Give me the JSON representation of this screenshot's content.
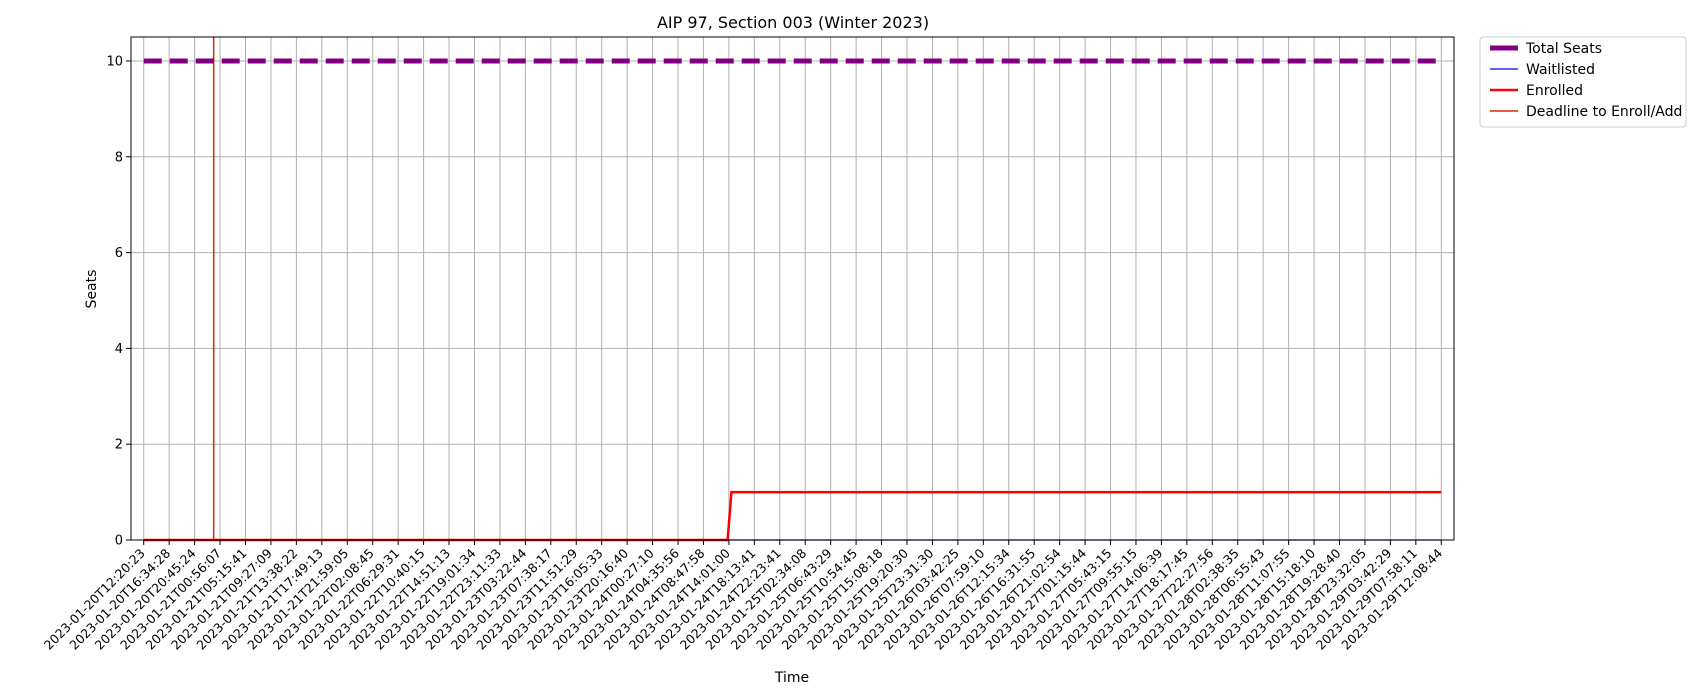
{
  "chart_data": {
    "type": "line",
    "title": "AIP 97, Section 003 (Winter 2023)",
    "xlabel": "Time",
    "ylabel": "Seats",
    "ylim": [
      0,
      10.5
    ],
    "yticks": [
      0,
      2,
      4,
      6,
      8,
      10
    ],
    "grid": true,
    "legend_position": "outside-top-right",
    "x_categories": [
      "2023-01-20T12:20:23",
      "2023-01-20T16:34:28",
      "2023-01-20T20:45:24",
      "2023-01-21T00:56:07",
      "2023-01-21T05:15:41",
      "2023-01-21T09:27:09",
      "2023-01-21T13:38:22",
      "2023-01-21T17:49:13",
      "2023-01-21T21:59:05",
      "2023-01-22T02:08:45",
      "2023-01-22T06:29:31",
      "2023-01-22T10:40:15",
      "2023-01-22T14:51:13",
      "2023-01-22T19:01:34",
      "2023-01-22T23:11:33",
      "2023-01-23T03:22:44",
      "2023-01-23T07:38:17",
      "2023-01-23T11:51:29",
      "2023-01-23T16:05:33",
      "2023-01-23T20:16:40",
      "2023-01-24T00:27:10",
      "2023-01-24T04:35:56",
      "2023-01-24T08:47:58",
      "2023-01-24T14:01:00",
      "2023-01-24T18:13:41",
      "2023-01-24T22:23:41",
      "2023-01-25T02:34:08",
      "2023-01-25T06:43:29",
      "2023-01-25T10:54:45",
      "2023-01-25T15:08:18",
      "2023-01-25T19:20:30",
      "2023-01-25T23:31:30",
      "2023-01-26T03:42:25",
      "2023-01-26T07:59:10",
      "2023-01-26T12:15:34",
      "2023-01-26T16:31:55",
      "2023-01-26T21:02:54",
      "2023-01-27T01:15:44",
      "2023-01-27T05:43:15",
      "2023-01-27T09:55:15",
      "2023-01-27T14:06:39",
      "2023-01-27T18:17:45",
      "2023-01-27T22:27:56",
      "2023-01-28T02:38:35",
      "2023-01-28T06:55:43",
      "2023-01-28T11:07:55",
      "2023-01-28T15:18:10",
      "2023-01-28T19:28:40",
      "2023-01-28T23:32:05",
      "2023-01-29T03:42:29",
      "2023-01-29T07:58:11",
      "2023-01-29T12:08:44"
    ],
    "series": [
      {
        "name": "Total Seats",
        "color": "#800080",
        "style": "dashed",
        "points": [
          [
            0,
            10
          ],
          [
            51,
            10
          ]
        ]
      },
      {
        "name": "Waitlisted",
        "color": "#0000ff",
        "style": "solid",
        "points": [
          [
            0,
            0
          ],
          [
            51,
            0
          ]
        ]
      },
      {
        "name": "Enrolled",
        "color": "#ff0000",
        "style": "solid",
        "points": [
          [
            0,
            0
          ],
          [
            22.95,
            0
          ],
          [
            23.1,
            1
          ],
          [
            51,
            1
          ]
        ]
      }
    ],
    "vertical_line": {
      "name": "Deadline to Enroll/Add",
      "color": "#d62c00",
      "x_index": 2.75
    }
  }
}
